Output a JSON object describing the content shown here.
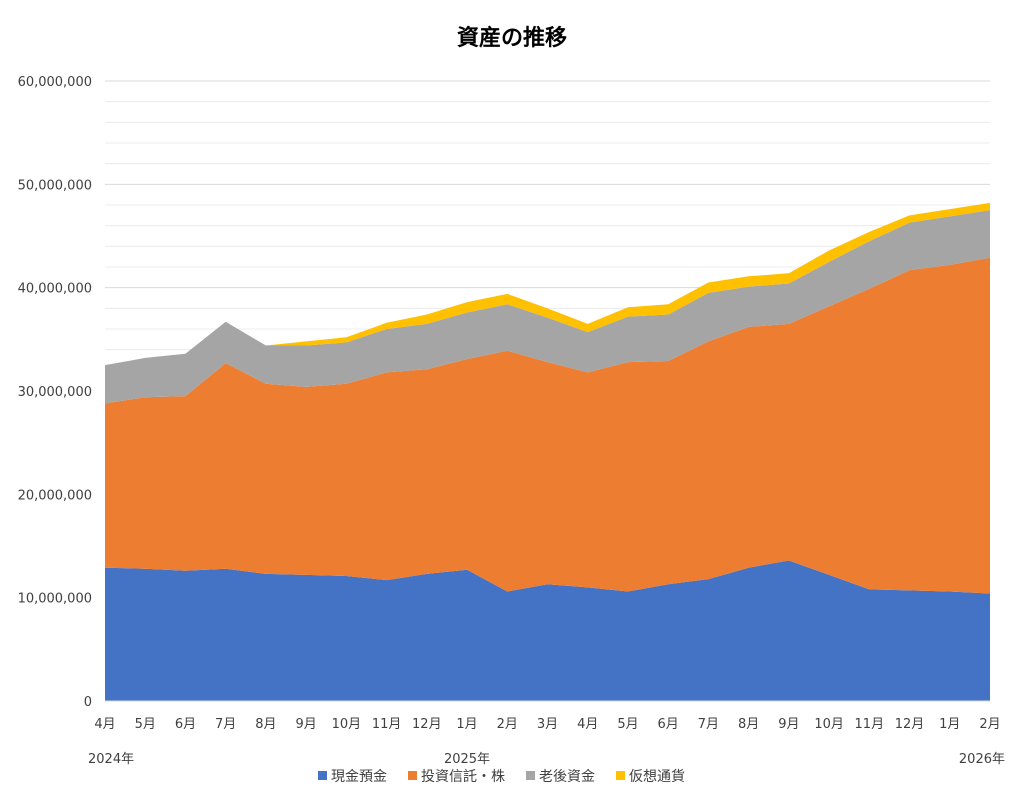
{
  "chart_data": {
    "type": "area",
    "stacked": true,
    "title": "資産の推移",
    "xlabel": "",
    "ylabel": "",
    "ylim": [
      0,
      60000000
    ],
    "y_ticks": [
      0,
      10000000,
      20000000,
      30000000,
      40000000,
      50000000,
      60000000
    ],
    "y_tick_labels": [
      "0",
      "10,000,000",
      "20,000,000",
      "30,000,000",
      "40,000,000",
      "50,000,000",
      "60,000,000"
    ],
    "grid": true,
    "legend_position": "bottom",
    "categories": [
      "4月",
      "5月",
      "6月",
      "7月",
      "8月",
      "9月",
      "10月",
      "11月",
      "12月",
      "1月",
      "2月",
      "3月",
      "4月",
      "5月",
      "6月",
      "7月",
      "8月",
      "9月",
      "10月",
      "11月",
      "12月",
      "1月",
      "2月"
    ],
    "year_labels": [
      {
        "index": 0,
        "label": "2024年"
      },
      {
        "index": 9,
        "label": "2025年"
      },
      {
        "index": 22,
        "label": "2026年"
      }
    ],
    "series": [
      {
        "name": "現金預金",
        "color": "#4472C4",
        "values": [
          12900000,
          12800000,
          12600000,
          12800000,
          12300000,
          12200000,
          12100000,
          11700000,
          12300000,
          12700000,
          10600000,
          11300000,
          11000000,
          10600000,
          11300000,
          11800000,
          12900000,
          13600000,
          12200000,
          10800000,
          10700000,
          10600000,
          10400000
        ]
      },
      {
        "name": "投資信託・株",
        "color": "#ED7D31",
        "values": [
          15900000,
          16600000,
          16900000,
          19900000,
          18400000,
          18200000,
          18600000,
          20100000,
          19800000,
          20400000,
          23300000,
          21500000,
          20800000,
          22200000,
          21600000,
          23000000,
          23300000,
          22900000,
          26000000,
          29100000,
          31000000,
          31600000,
          32500000
        ]
      },
      {
        "name": "老後資金",
        "color": "#A5A5A5",
        "values": [
          3700000,
          3800000,
          4100000,
          4000000,
          3700000,
          4000000,
          4000000,
          4200000,
          4400000,
          4500000,
          4500000,
          4300000,
          3900000,
          4400000,
          4500000,
          4700000,
          3900000,
          3900000,
          4300000,
          4600000,
          4600000,
          4700000,
          4600000
        ]
      },
      {
        "name": "仮想通貨",
        "color": "#FFC000",
        "values": [
          0,
          0,
          0,
          0,
          0,
          400000,
          500000,
          600000,
          900000,
          1000000,
          1000000,
          900000,
          800000,
          900000,
          1000000,
          1000000,
          1000000,
          1000000,
          1100000,
          900000,
          700000,
          700000,
          700000
        ]
      }
    ]
  }
}
